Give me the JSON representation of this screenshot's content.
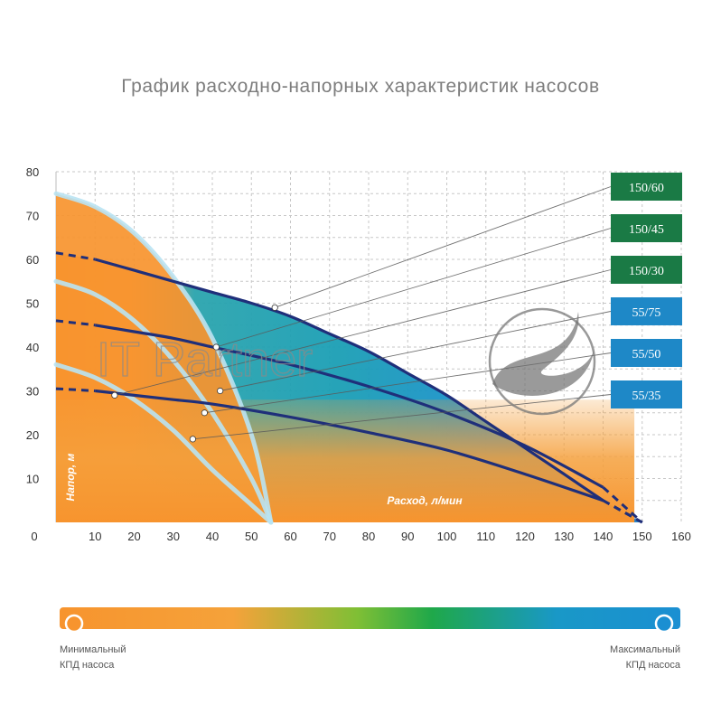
{
  "watermark": "IT Partner",
  "chart_data": {
    "type": "line",
    "title": "График расходно-напорных характеристик насосов",
    "xlabel": "Расход, л/мин",
    "ylabel": "Напор, м",
    "xlim": [
      0,
      160
    ],
    "ylim": [
      0,
      80
    ],
    "x_ticks": [
      0,
      10,
      20,
      30,
      40,
      50,
      60,
      70,
      80,
      90,
      100,
      110,
      120,
      130,
      140,
      150,
      160
    ],
    "y_ticks": [
      10,
      20,
      30,
      40,
      50,
      60,
      70,
      80
    ],
    "grid": true,
    "series": [
      {
        "name": "150/60",
        "color": "#1a7a45",
        "x": [
          0,
          10,
          20,
          30,
          40,
          50,
          60,
          70,
          80,
          90,
          100,
          110,
          120,
          130,
          140,
          150
        ],
        "y": [
          61.5,
          60,
          57.5,
          55,
          52.5,
          50,
          47,
          43,
          39,
          34,
          29,
          23,
          17,
          11,
          5,
          0
        ]
      },
      {
        "name": "150/45",
        "color": "#1a7a45",
        "x": [
          0,
          10,
          20,
          30,
          40,
          60,
          80,
          100,
          120,
          140,
          150
        ],
        "y": [
          46,
          45,
          43.5,
          42,
          40,
          36,
          31,
          25,
          17.5,
          8,
          0
        ]
      },
      {
        "name": "150/30",
        "color": "#1a7a45",
        "x": [
          0,
          10,
          20,
          30,
          40,
          60,
          80,
          100,
          120,
          140,
          150
        ],
        "y": [
          30.5,
          30,
          29,
          28,
          27,
          24,
          20.5,
          16.5,
          11,
          5,
          0
        ]
      },
      {
        "name": "55/75",
        "color": "#1e88c7",
        "x": [
          0,
          10,
          20,
          30,
          40,
          50,
          55
        ],
        "y": [
          75,
          72,
          66,
          56,
          42,
          20,
          0
        ]
      },
      {
        "name": "55/50",
        "color": "#1e88c7",
        "x": [
          0,
          10,
          20,
          30,
          40,
          50,
          55
        ],
        "y": [
          55,
          52,
          46,
          37,
          25,
          10,
          0
        ]
      },
      {
        "name": "55/35",
        "color": "#1e88c7",
        "x": [
          0,
          10,
          20,
          30,
          40,
          50,
          55
        ],
        "y": [
          36,
          33,
          28,
          21,
          12,
          4,
          0
        ]
      }
    ],
    "markers": [
      {
        "series": "150/60",
        "x": 56,
        "y": 49
      },
      {
        "series": "150/45",
        "x": 41,
        "y": 40
      },
      {
        "series": "150/30",
        "x": 15,
        "y": 29
      },
      {
        "series": "55/75",
        "x": 42,
        "y": 30
      },
      {
        "series": "55/50",
        "x": 38,
        "y": 25
      },
      {
        "series": "55/35",
        "x": 35,
        "y": 19
      }
    ],
    "legend": {
      "min_label_line1": "Минимальный",
      "min_label_line2": "КПД насоса",
      "max_label_line1": "Максимальный",
      "max_label_line2": "КПД насоса",
      "colors": [
        "#f7942e",
        "#7fbf35",
        "#1fa84a",
        "#1998c7",
        "#1b8fd2"
      ]
    }
  }
}
